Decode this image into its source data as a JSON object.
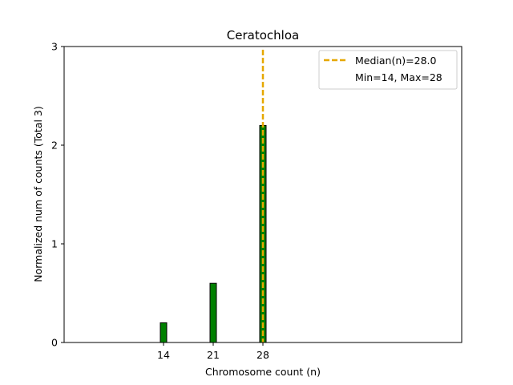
{
  "chart_data": {
    "type": "bar",
    "title": "Ceratochloa",
    "xlabel": "Chromosome count (n)",
    "ylabel": "Normalized num of counts     (Total 3)",
    "x": [
      14,
      21,
      28
    ],
    "values": [
      0.2,
      0.6,
      2.2
    ],
    "xticks": [
      "14",
      "21",
      "28"
    ],
    "yticks": [
      "0",
      "1",
      "2",
      "3"
    ],
    "xlim": [
      0,
      56
    ],
    "ylim": [
      0,
      3
    ],
    "bar_color": "#008000",
    "bar_edge_color": "#000000",
    "median": {
      "value": 28.0,
      "color": "#E6A800",
      "label": "Median(n)=28.0"
    },
    "range_label": "Min=14, Max=28",
    "legend_position": "upper right",
    "grid": false
  }
}
